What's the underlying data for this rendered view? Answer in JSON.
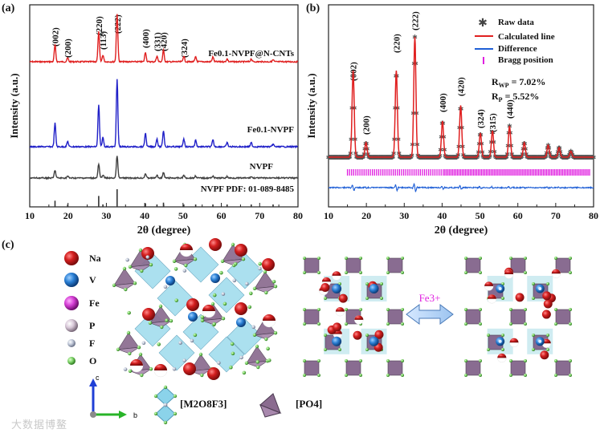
{
  "panels": {
    "a": "(a)",
    "b": "(b)",
    "c": "(c)"
  },
  "watermark": "大数据博鳌",
  "chart_data": [
    {
      "id": "a",
      "type": "line",
      "title": "",
      "xlabel": "2θ (degree)",
      "ylabel": "Intensity (a.u.)",
      "xlim": [
        10,
        80
      ],
      "xticks": [
        10,
        20,
        30,
        40,
        50,
        60,
        70,
        80
      ],
      "peaks": [
        {
          "x": 16.6,
          "label": "(002)",
          "rel": 0.35
        },
        {
          "x": 19.9,
          "label": "(200)",
          "rel": 0.08
        },
        {
          "x": 28.0,
          "label": "(220)",
          "rel": 0.62
        },
        {
          "x": 29.1,
          "label": "(113)",
          "rel": 0.14
        },
        {
          "x": 32.8,
          "label": "(222)",
          "rel": 1.0
        },
        {
          "x": 40.2,
          "label": "(400)",
          "rel": 0.2
        },
        {
          "x": 43.2,
          "label": "(331)",
          "rel": 0.12
        },
        {
          "x": 44.9,
          "label": "(420)",
          "rel": 0.24
        },
        {
          "x": 50.2,
          "label": "(324)",
          "rel": 0.12
        },
        {
          "x": 53.3,
          "label": "",
          "rel": 0.1
        },
        {
          "x": 57.8,
          "label": "",
          "rel": 0.1
        },
        {
          "x": 61.5,
          "label": "",
          "rel": 0.06
        },
        {
          "x": 67.8,
          "label": "",
          "rel": 0.06
        },
        {
          "x": 73.5,
          "label": "",
          "rel": 0.04
        }
      ],
      "series": [
        {
          "name": "Fe0.1-NVPF@N-CNTs",
          "color": "#e02020",
          "amp": 60
        },
        {
          "name": "Fe0.1-NVPF",
          "color": "#2020c8",
          "amp": 84
        },
        {
          "name": "NVPF",
          "color": "#404040",
          "amp": 28
        },
        {
          "name": "NVPF PDF: 01-089-8485",
          "color": "#333333",
          "type": "stick"
        }
      ]
    },
    {
      "id": "b",
      "type": "line",
      "xlabel": "2θ (degree)",
      "ylabel": "Intensity (a.u.)",
      "xlim": [
        10,
        80
      ],
      "xticks": [
        10,
        20,
        30,
        40,
        50,
        60,
        70,
        80
      ],
      "peaks": [
        {
          "x": 16.5,
          "label": "(002)",
          "rel": 0.72
        },
        {
          "x": 19.9,
          "label": "(200)",
          "rel": 0.12
        },
        {
          "x": 27.9,
          "label": "(220)",
          "rel": 0.72
        },
        {
          "x": 32.8,
          "label": "(222)",
          "rel": 1.0
        },
        {
          "x": 40.1,
          "label": "(400)",
          "rel": 0.3
        },
        {
          "x": 44.9,
          "label": "(420)",
          "rel": 0.43
        },
        {
          "x": 50.1,
          "label": "(324)",
          "rel": 0.2
        },
        {
          "x": 53.3,
          "label": "(315)",
          "rel": 0.22
        },
        {
          "x": 57.8,
          "label": "(440)",
          "rel": 0.26
        },
        {
          "x": 61.7,
          "label": "",
          "rel": 0.12
        },
        {
          "x": 68.0,
          "label": "",
          "rel": 0.1
        },
        {
          "x": 70.9,
          "label": "",
          "rel": 0.08
        },
        {
          "x": 74.0,
          "label": "",
          "rel": 0.05
        }
      ],
      "legend": [
        {
          "label": "Raw data",
          "color": "#444444",
          "marker": "*"
        },
        {
          "label": "Calculated line",
          "color": "#e02020",
          "marker": "line"
        },
        {
          "label": "Difference",
          "color": "#1f5fd6",
          "marker": "line"
        },
        {
          "label": "Bragg position",
          "color": "#e020e0",
          "marker": "|"
        }
      ],
      "rwp": "7.02%",
      "rp": "5.52%"
    }
  ],
  "structure": {
    "legend": [
      {
        "symbol": "Na",
        "color": "#d41f1f"
      },
      {
        "symbol": "V",
        "color": "#2a7fd4"
      },
      {
        "symbol": "Fe",
        "color": "#d43ed4"
      },
      {
        "symbol": "P",
        "color": "#c9b9c9"
      },
      {
        "symbol": "F",
        "color": "#b0b8c8"
      },
      {
        "symbol": "O",
        "color": "#7fd46a"
      }
    ],
    "axes": {
      "c": "c",
      "b": "b"
    },
    "polyhedra": {
      "oct": "[M2O8F3]",
      "tet": "[PO4]"
    },
    "fe_label": "Fe3+"
  }
}
